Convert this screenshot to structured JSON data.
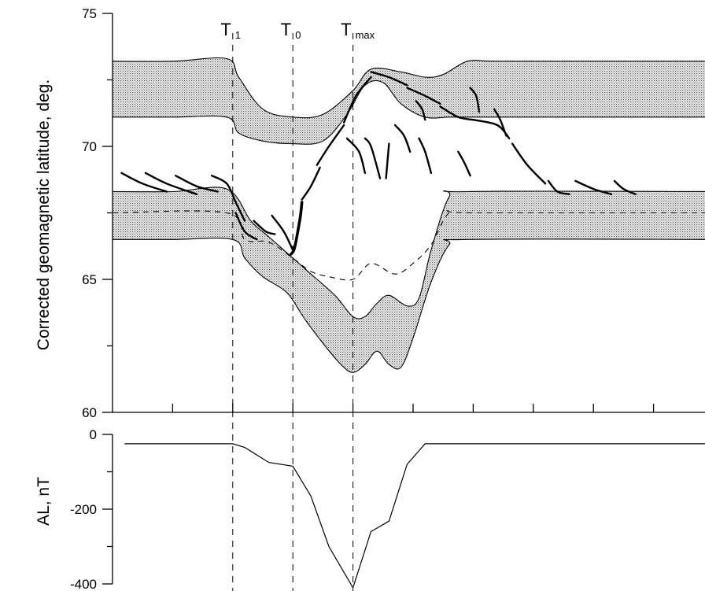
{
  "chart_data": [
    {
      "type": "line",
      "ylabel": "Corrected geomagnetic latitude, deg.",
      "ylim": [
        60,
        75
      ],
      "yticks": [
        60,
        65,
        70,
        75
      ],
      "yticks_minor": [
        62.5,
        67.5,
        72.5
      ],
      "xlim": [
        0,
        10
      ],
      "xticks_minor": [
        1,
        2,
        3,
        4,
        5,
        6,
        7,
        8,
        9
      ],
      "grid": false,
      "event_markers": [
        {
          "x": 2,
          "label": "T",
          "sub": "1"
        },
        {
          "x": 3,
          "label": "T",
          "sub": "0"
        },
        {
          "x": 4,
          "label": "T",
          "sub": "max"
        }
      ],
      "series": [
        {
          "style": "thin-solid",
          "role": "upper-band-top",
          "x": [
            0,
            1,
            1.9,
            2.1,
            2.5,
            3,
            3.5,
            4,
            4.3,
            4.8,
            5.2,
            5.5,
            5.9,
            6.3,
            7,
            10
          ],
          "y": [
            73.2,
            73.2,
            73.3,
            72.6,
            71.4,
            71.1,
            71.2,
            72.1,
            72.9,
            72.8,
            72.6,
            72.7,
            73.2,
            73.2,
            73.2,
            73.2
          ]
        },
        {
          "style": "thin-solid",
          "role": "upper-band-bottom",
          "x": [
            0,
            1,
            1.9,
            2.1,
            2.5,
            3,
            3.5,
            3.9,
            4.2,
            4.5,
            4.8,
            5.2,
            5.6,
            6,
            7,
            10
          ],
          "y": [
            71.1,
            71.1,
            71.1,
            70.5,
            70.2,
            70.1,
            70.2,
            71.2,
            72.3,
            72.4,
            71.6,
            71.1,
            71.1,
            71.1,
            71.1,
            71.1
          ]
        },
        {
          "style": "thin-solid",
          "role": "lower-band-top",
          "x": [
            0,
            1,
            1.9,
            2.3,
            2.6,
            3,
            3.3,
            3.7,
            4,
            4.2,
            4.4,
            4.6,
            4.9,
            5.1,
            5.3,
            5.6,
            5.9,
            10
          ],
          "y": [
            68.3,
            68.3,
            68.4,
            67.2,
            66.6,
            65.8,
            65.2,
            64.4,
            63.6,
            63.6,
            64.1,
            64.4,
            64.0,
            64.3,
            66.1,
            68.1,
            68.3,
            68.3
          ]
        },
        {
          "style": "thin-solid",
          "role": "lower-band-bottom",
          "x": [
            0,
            1,
            2,
            2.2,
            2.5,
            2.9,
            3.2,
            3.5,
            3.8,
            4,
            4.2,
            4.4,
            4.6,
            4.8,
            5,
            5.3,
            5.6,
            5.9,
            10
          ],
          "y": [
            66.5,
            66.5,
            66.5,
            65.8,
            65.1,
            64.5,
            63.5,
            62.6,
            61.8,
            61.5,
            61.8,
            62.3,
            61.8,
            61.7,
            62.8,
            64.9,
            66.3,
            66.5,
            66.5
          ]
        },
        {
          "style": "dashed",
          "role": "lower-band-center",
          "x": [
            0,
            1.9,
            2.2,
            2.6,
            3,
            3.3,
            3.6,
            4,
            4.3,
            4.7,
            5,
            5.3,
            5.6,
            6,
            10
          ],
          "y": [
            67.5,
            67.5,
            66.5,
            66.4,
            65.8,
            65.3,
            65.1,
            65.0,
            65.6,
            65.2,
            65.6,
            66.3,
            67.5,
            67.5,
            67.5
          ]
        }
      ],
      "arcs": [
        [
          [
            0.15,
            69.0
          ],
          [
            0.5,
            68.6
          ],
          [
            0.9,
            68.3
          ]
        ],
        [
          [
            0.55,
            69.0
          ],
          [
            0.9,
            68.6
          ],
          [
            1.4,
            68.2
          ]
        ],
        [
          [
            1.05,
            68.9
          ],
          [
            1.4,
            68.5
          ],
          [
            1.75,
            68.3
          ]
        ],
        [
          [
            1.65,
            68.9
          ],
          [
            1.9,
            68.6
          ],
          [
            2.05,
            67.9
          ],
          [
            2.2,
            67.2
          ]
        ],
        [
          [
            2.05,
            67.5
          ],
          [
            2.2,
            66.8
          ],
          [
            2.4,
            66.5
          ]
        ],
        [
          [
            2.35,
            67.2
          ],
          [
            2.55,
            66.8
          ],
          [
            2.7,
            66.7
          ]
        ],
        [
          [
            2.65,
            67.4
          ],
          [
            2.85,
            66.8
          ],
          [
            3.0,
            66.1
          ]
        ],
        [
          [
            2.97,
            65.95
          ],
          [
            3.03,
            66.2
          ],
          [
            3.12,
            67.3
          ],
          [
            3.15,
            67.9
          ]
        ],
        [
          [
            3.15,
            68.0
          ],
          [
            3.3,
            68.5
          ],
          [
            3.45,
            69.2
          ]
        ],
        [
          [
            3.4,
            69.3
          ],
          [
            3.6,
            70.0
          ],
          [
            3.85,
            70.8
          ]
        ],
        [
          [
            3.85,
            70.9
          ],
          [
            4.05,
            71.9
          ],
          [
            4.3,
            72.6
          ]
        ],
        [
          [
            4.3,
            72.8
          ],
          [
            4.6,
            72.6
          ],
          [
            4.9,
            72.3
          ]
        ],
        [
          [
            4.9,
            72.2
          ],
          [
            5.2,
            71.9
          ],
          [
            5.45,
            71.6
          ]
        ],
        [
          [
            5.45,
            71.5
          ],
          [
            5.75,
            71.1
          ],
          [
            6.0,
            71.0
          ]
        ],
        [
          [
            6.0,
            71.0
          ],
          [
            6.4,
            70.8
          ],
          [
            6.6,
            70.3
          ]
        ],
        [
          [
            6.65,
            70.1
          ],
          [
            6.9,
            69.3
          ],
          [
            7.2,
            68.6
          ]
        ],
        [
          [
            7.25,
            68.7
          ],
          [
            7.4,
            68.3
          ],
          [
            7.6,
            68.2
          ]
        ],
        [
          [
            7.7,
            68.7
          ],
          [
            8.0,
            68.4
          ],
          [
            8.3,
            68.2
          ]
        ],
        [
          [
            8.35,
            68.7
          ],
          [
            8.5,
            68.4
          ],
          [
            8.7,
            68.2
          ]
        ],
        [
          [
            3.9,
            70.3
          ],
          [
            4.1,
            69.8
          ],
          [
            4.2,
            69.0
          ]
        ],
        [
          [
            4.2,
            70.3
          ],
          [
            4.3,
            70.0
          ],
          [
            4.45,
            68.8
          ]
        ],
        [
          [
            4.55,
            68.8
          ],
          [
            4.6,
            70.1
          ]
        ],
        [
          [
            4.7,
            70.8
          ],
          [
            4.85,
            70.4
          ],
          [
            4.95,
            69.8
          ]
        ],
        [
          [
            5.1,
            70.3
          ],
          [
            5.2,
            69.8
          ],
          [
            5.3,
            69.0
          ]
        ],
        [
          [
            5.75,
            69.8
          ],
          [
            5.85,
            69.4
          ],
          [
            5.95,
            68.9
          ]
        ],
        [
          [
            5.95,
            72.2
          ],
          [
            6.05,
            71.9
          ],
          [
            6.1,
            71.3
          ]
        ],
        [
          [
            5.05,
            71.7
          ],
          [
            5.15,
            71.4
          ],
          [
            5.2,
            71.0
          ]
        ],
        [
          [
            6.35,
            71.4
          ],
          [
            6.45,
            71.0
          ],
          [
            6.55,
            70.4
          ]
        ]
      ]
    },
    {
      "type": "line",
      "ylabel": "AL, nT",
      "ylim": [
        -400,
        0
      ],
      "yticks": [
        -400,
        -200,
        0
      ],
      "yticks_minor": [
        -300,
        -100
      ],
      "xlim": [
        0,
        10
      ],
      "grid": false,
      "series": [
        {
          "style": "thin-solid",
          "x": [
            0.2,
            2,
            2.2,
            2.6,
            3,
            3.3,
            3.6,
            4,
            4.3,
            4.6,
            4.9,
            5.2,
            5.5,
            10
          ],
          "y": [
            -25,
            -25,
            -35,
            -75,
            -85,
            -165,
            -300,
            -410,
            -260,
            -232,
            -80,
            -25,
            -25,
            -25
          ]
        }
      ]
    }
  ]
}
